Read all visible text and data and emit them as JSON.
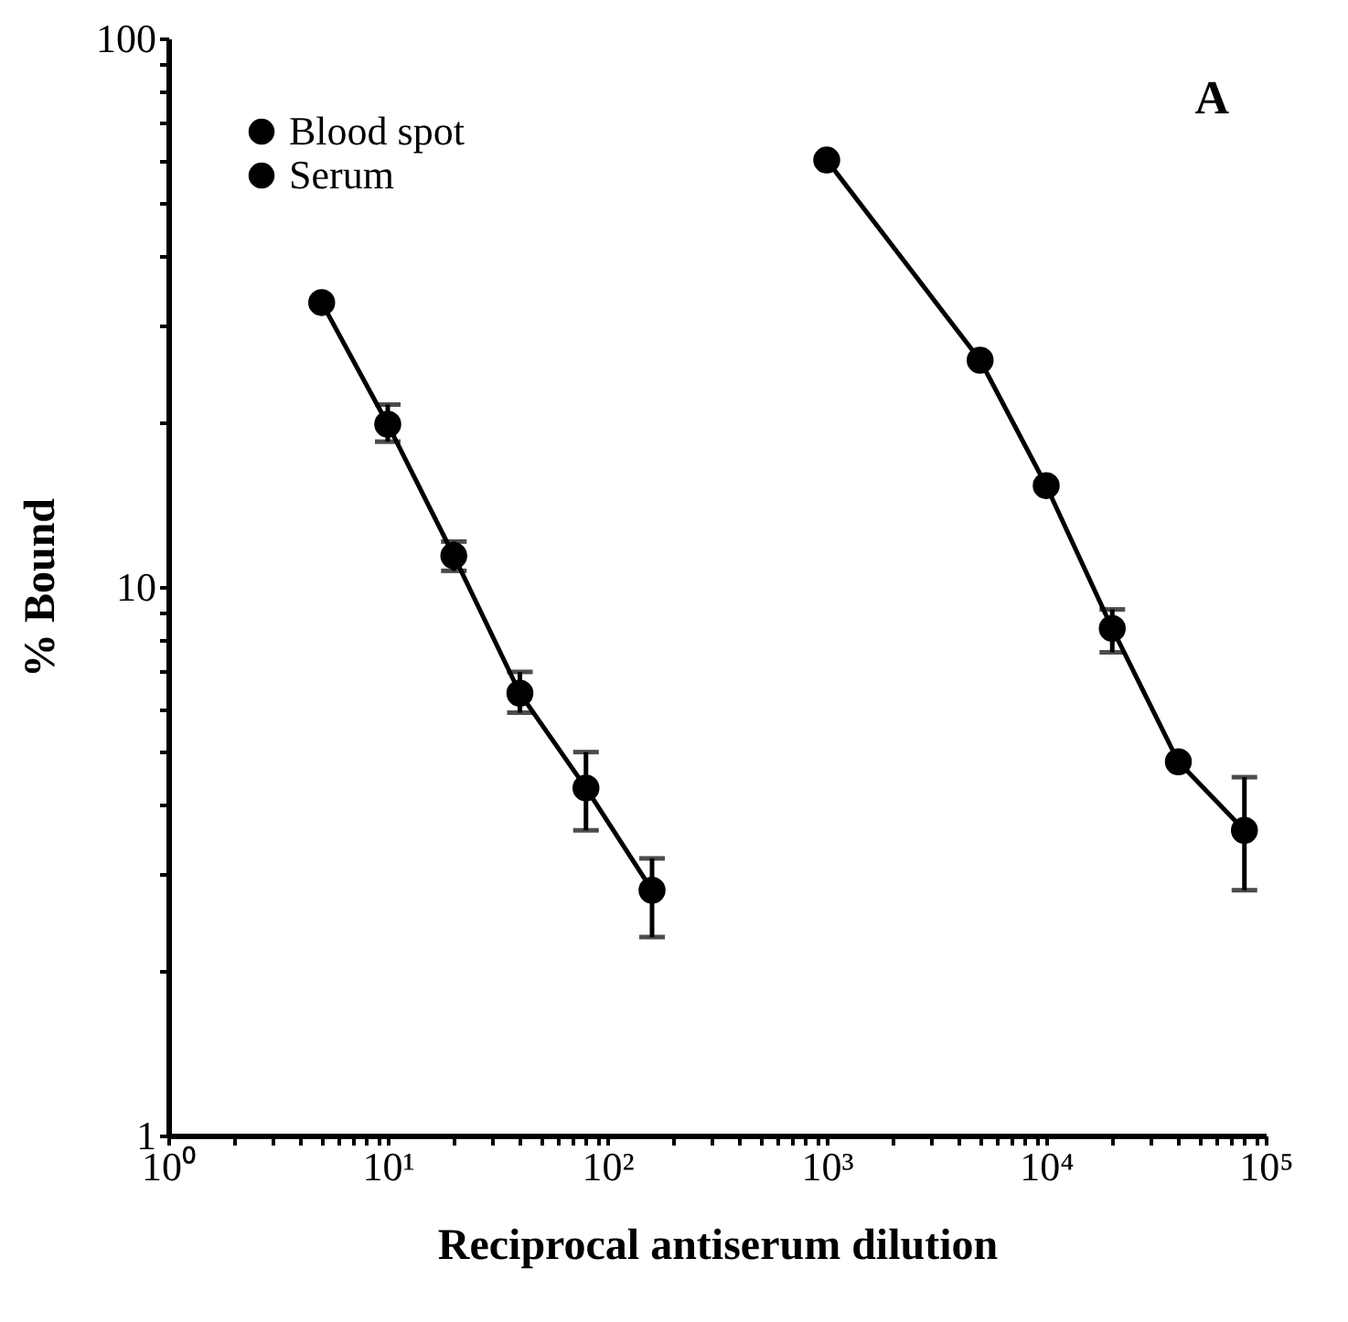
{
  "chart_data": {
    "type": "line",
    "xlabel": "Reciprocal antiserum dilution",
    "ylabel": "% Bound",
    "annotations": [
      "A"
    ],
    "log": "xy",
    "xlim": [
      1,
      100000
    ],
    "ylim": [
      1,
      100
    ],
    "xticks": [
      {
        "value": 1,
        "label": "10⁰"
      },
      {
        "value": 2,
        "label": null
      },
      {
        "value": 3,
        "label": null
      },
      {
        "value": 4,
        "label": null
      },
      {
        "value": 5,
        "label": null
      },
      {
        "value": 6,
        "label": null
      },
      {
        "value": 7,
        "label": null
      },
      {
        "value": 8,
        "label": null
      },
      {
        "value": 9,
        "label": null
      },
      {
        "value": 10,
        "label": "10¹"
      },
      {
        "value": 20,
        "label": null
      },
      {
        "value": 30,
        "label": null
      },
      {
        "value": 40,
        "label": null
      },
      {
        "value": 50,
        "label": null
      },
      {
        "value": 60,
        "label": null
      },
      {
        "value": 70,
        "label": null
      },
      {
        "value": 80,
        "label": null
      },
      {
        "value": 90,
        "label": null
      },
      {
        "value": 100,
        "label": "10²"
      },
      {
        "value": 200,
        "label": null
      },
      {
        "value": 300,
        "label": null
      },
      {
        "value": 400,
        "label": null
      },
      {
        "value": 500,
        "label": null
      },
      {
        "value": 600,
        "label": null
      },
      {
        "value": 700,
        "label": null
      },
      {
        "value": 800,
        "label": null
      },
      {
        "value": 900,
        "label": null
      },
      {
        "value": 1000,
        "label": "10³"
      },
      {
        "value": 2000,
        "label": null
      },
      {
        "value": 3000,
        "label": null
      },
      {
        "value": 4000,
        "label": null
      },
      {
        "value": 5000,
        "label": null
      },
      {
        "value": 6000,
        "label": null
      },
      {
        "value": 7000,
        "label": null
      },
      {
        "value": 8000,
        "label": null
      },
      {
        "value": 9000,
        "label": null
      },
      {
        "value": 10000,
        "label": "10⁴"
      },
      {
        "value": 20000,
        "label": null
      },
      {
        "value": 30000,
        "label": null
      },
      {
        "value": 40000,
        "label": null
      },
      {
        "value": 50000,
        "label": null
      },
      {
        "value": 60000,
        "label": null
      },
      {
        "value": 70000,
        "label": null
      },
      {
        "value": 80000,
        "label": null
      },
      {
        "value": 90000,
        "label": null
      },
      {
        "value": 100000,
        "label": "10⁵"
      }
    ],
    "yticks": [
      1,
      {
        "value": 2,
        "label": null
      },
      {
        "value": 3,
        "label": null
      },
      {
        "value": 4,
        "label": null
      },
      {
        "value": 5,
        "label": null
      },
      {
        "value": 6,
        "label": null
      },
      {
        "value": 7,
        "label": null
      },
      {
        "value": 8,
        "label": null
      },
      {
        "value": 9,
        "label": null
      },
      10,
      {
        "value": 20,
        "label": null
      },
      {
        "value": 30,
        "label": null
      },
      {
        "value": 40,
        "label": null
      },
      {
        "value": 50,
        "label": null
      },
      {
        "value": 60,
        "label": null
      },
      {
        "value": 70,
        "label": null
      },
      {
        "value": 80,
        "label": null
      },
      {
        "value": 90,
        "label": null
      },
      100
    ],
    "grid": false,
    "legend": "top left",
    "marker": "circle",
    "line_style": "solid",
    "series": [
      {
        "name": "Blood spot",
        "color": "#000000",
        "x": [
          5,
          10,
          20,
          40,
          80,
          160
        ],
        "values": [
          33,
          19.8,
          11.4,
          6.4,
          4.3,
          2.8
        ],
        "errors": [
          null,
          [
            18.4,
            21.5
          ],
          [
            10.7,
            12.1
          ],
          [
            5.9,
            7.0
          ],
          [
            3.6,
            5.0
          ],
          [
            2.3,
            3.2
          ]
        ]
      },
      {
        "name": "Serum",
        "color": "#000000",
        "x": [
          1000,
          5000,
          10000,
          20000,
          40000,
          80000
        ],
        "values": [
          60,
          25.9,
          15.3,
          8.4,
          4.8,
          3.6
        ],
        "errors": [
          null,
          null,
          null,
          [
            7.6,
            9.1
          ],
          null,
          [
            2.8,
            4.5
          ]
        ]
      }
    ]
  }
}
